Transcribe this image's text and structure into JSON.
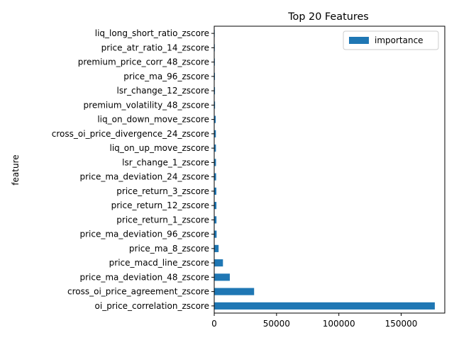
{
  "chart_data": {
    "type": "bar",
    "orientation": "horizontal",
    "title": "Top 20 Features",
    "xlabel": "",
    "ylabel": "feature",
    "xlim": [
      0,
      185000
    ],
    "x_ticks": [
      0,
      50000,
      100000,
      150000
    ],
    "legend": {
      "labels": [
        "importance"
      ],
      "placement": "top-right"
    },
    "grid": false,
    "series": [
      {
        "name": "importance",
        "color": "#1f77b4",
        "categories": [
          "liq_long_short_ratio_zscore",
          "price_atr_ratio_14_zscore",
          "premium_price_corr_48_zscore",
          "price_ma_96_zscore",
          "lsr_change_12_zscore",
          "premium_volatility_48_zscore",
          "liq_on_down_move_zscore",
          "cross_oi_price_divergence_24_zscore",
          "liq_on_up_move_zscore",
          "lsr_change_1_zscore",
          "price_ma_deviation_24_zscore",
          "price_return_3_zscore",
          "price_return_12_zscore",
          "price_return_1_zscore",
          "price_ma_deviation_96_zscore",
          "price_ma_8_zscore",
          "price_macd_line_zscore",
          "price_ma_deviation_48_zscore",
          "cross_oi_price_agreement_zscore",
          "oi_price_correlation_zscore"
        ],
        "values": [
          400,
          450,
          500,
          550,
          600,
          650,
          1200,
          1300,
          1350,
          1400,
          1500,
          1700,
          1750,
          1800,
          1900,
          3500,
          7000,
          12500,
          32000,
          177000
        ]
      }
    ]
  }
}
